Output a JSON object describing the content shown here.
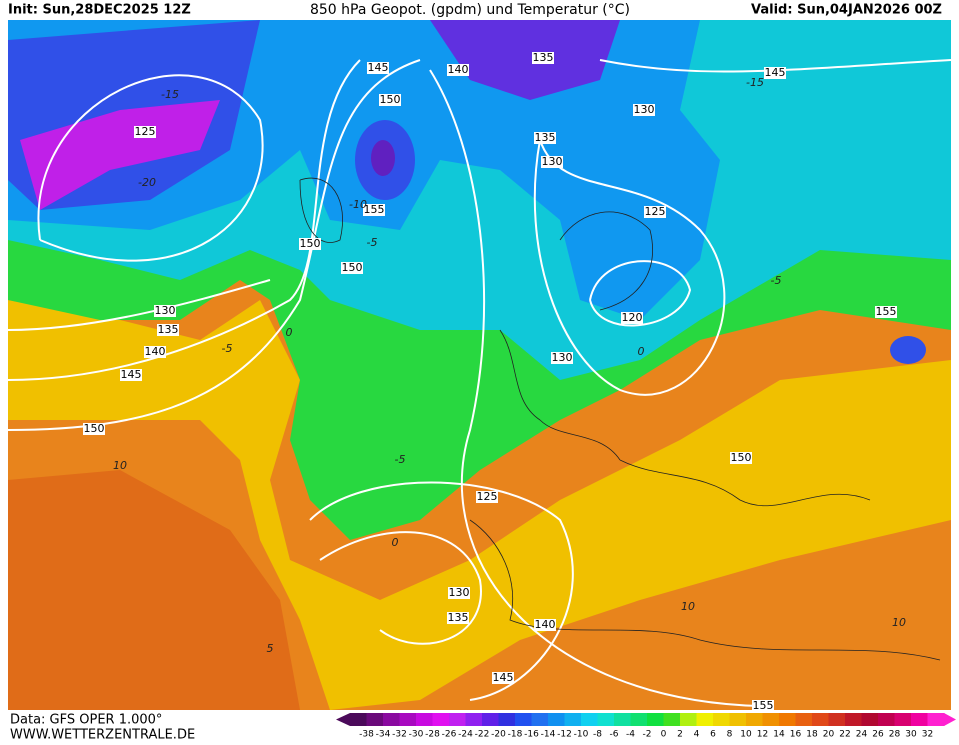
{
  "header": {
    "init": "Init: Sun,28DEC2025 12Z",
    "title": "850 hPa Geopot. (gpdm) und Temperatur (°C)",
    "valid": "Valid: Sun,04JAN2026 00Z"
  },
  "footer": {
    "data": "Data: GFS OPER 1.000°",
    "website": "WWW.WETTERZENTRALE.DE"
  },
  "geopotential_labels": [
    145,
    140,
    135,
    145,
    150,
    130,
    125,
    135,
    130,
    155,
    125,
    150,
    150,
    130,
    135,
    140,
    155,
    120,
    130,
    145,
    150,
    150,
    125,
    130,
    135,
    140,
    145,
    155
  ],
  "temperature_labels": [
    -15,
    -20,
    -10,
    -5,
    -5,
    0,
    -5,
    0,
    -5,
    0,
    10,
    5,
    10,
    10,
    -15
  ],
  "colorbar": {
    "labels": [
      -38,
      -34,
      -32,
      -30,
      -28,
      -26,
      -24,
      -22,
      -20,
      -18,
      -16,
      -14,
      -12,
      -10,
      -8,
      -6,
      -4,
      -2,
      0,
      2,
      4,
      6,
      8,
      10,
      12,
      14,
      16,
      18,
      20,
      22,
      24,
      26,
      28,
      30,
      32
    ],
    "colors": [
      "#4b0a5a",
      "#6a0a7a",
      "#8a0aa0",
      "#a80ac0",
      "#c80ae0",
      "#e010f0",
      "#c020f0",
      "#9020f0",
      "#6020e8",
      "#3030e0",
      "#2050f0",
      "#2070f0",
      "#1090f0",
      "#10b0f0",
      "#10d0f0",
      "#10e0d0",
      "#10e0a0",
      "#10e070",
      "#10e040",
      "#40e020",
      "#b0f010",
      "#f0f000",
      "#f0d800",
      "#f0c000",
      "#f0a800",
      "#f09000",
      "#f07800",
      "#e86010",
      "#e04818",
      "#d03020",
      "#c01828",
      "#b00830",
      "#c00050",
      "#d80070",
      "#f000a0",
      "#ff20d0"
    ]
  }
}
